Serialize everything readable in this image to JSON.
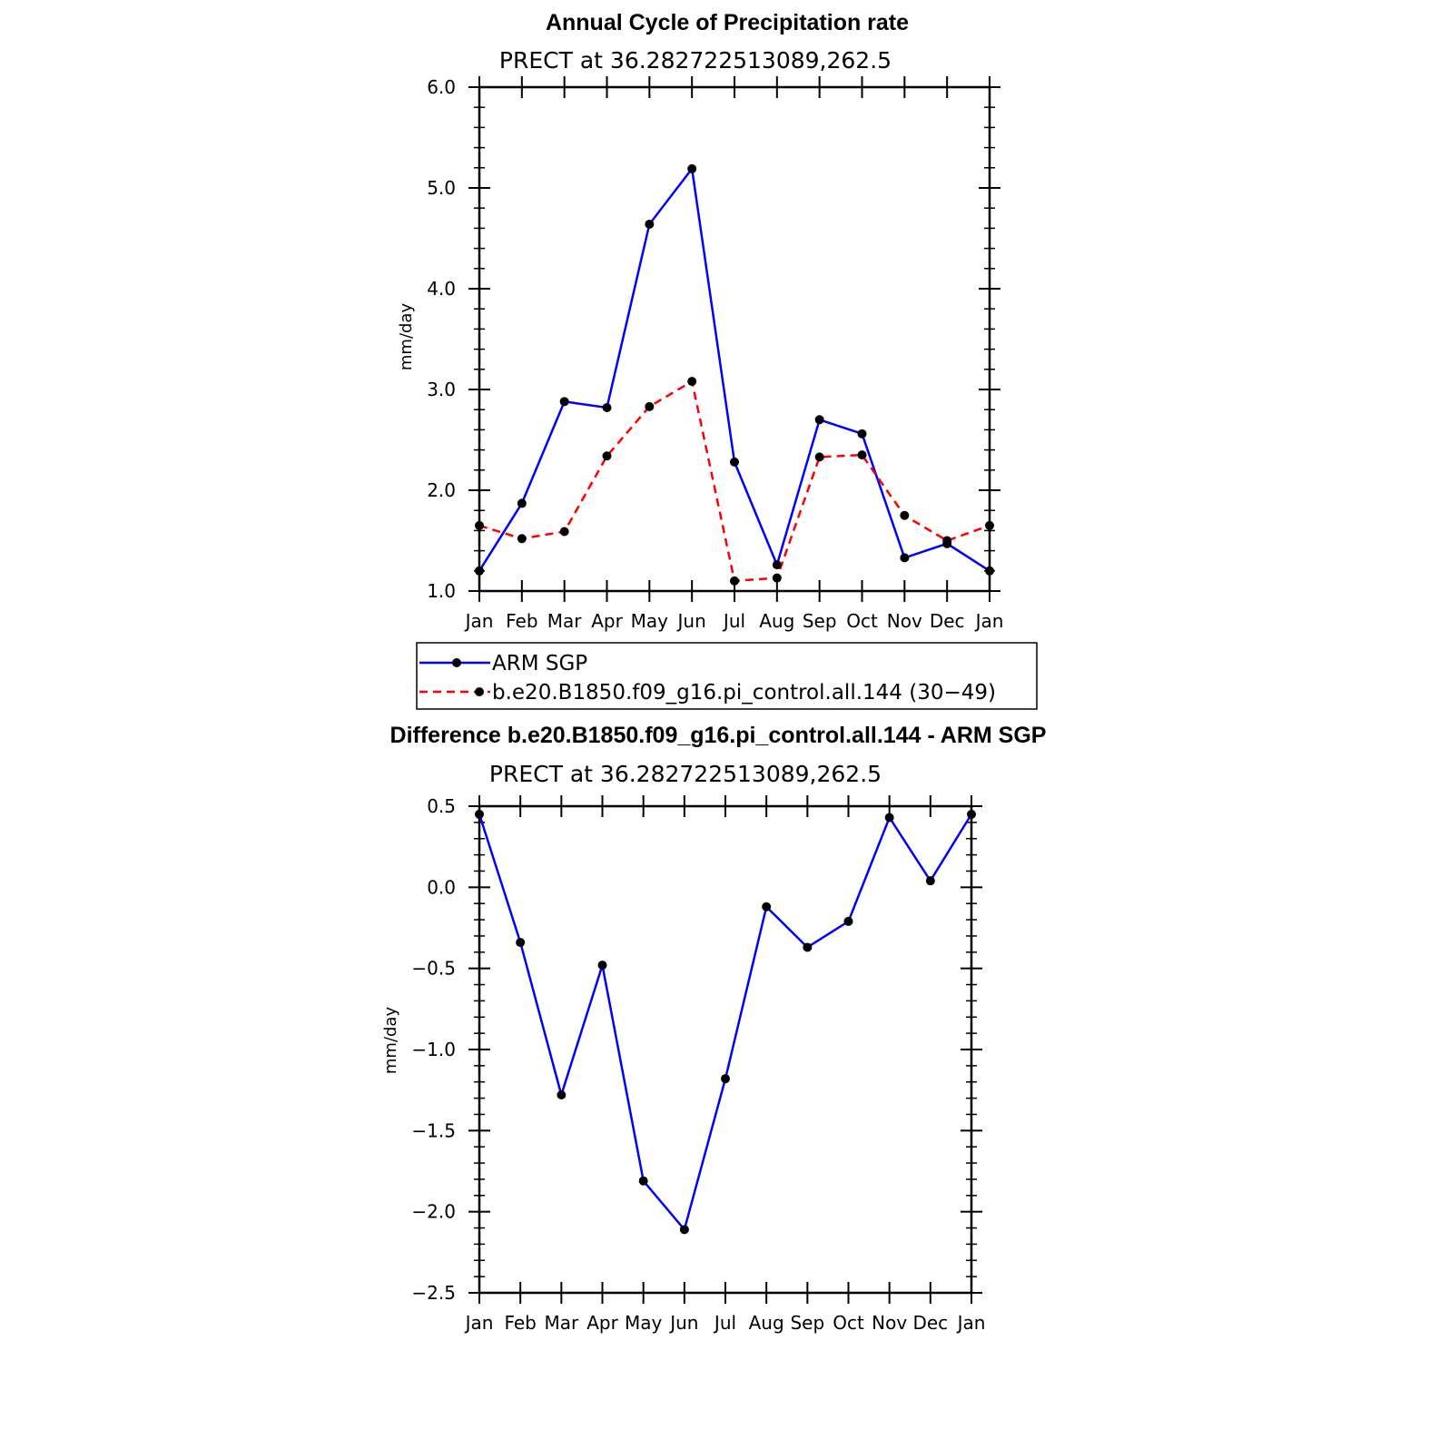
{
  "chart_data": [
    {
      "type": "line",
      "title": "Annual Cycle of Precipitation rate",
      "subtitle": "PRECT at 36.282722513089,262.5",
      "ylabel": "mm/day",
      "xlabel": "",
      "categories": [
        "Jan",
        "Feb",
        "Mar",
        "Apr",
        "May",
        "Jun",
        "Jul",
        "Aug",
        "Sep",
        "Oct",
        "Nov",
        "Dec",
        "Jan"
      ],
      "ylim": [
        1.0,
        6.0
      ],
      "yticks": [
        "1.0",
        "2.0",
        "3.0",
        "4.0",
        "5.0",
        "6.0"
      ],
      "ytick_values": [
        1.0,
        2.0,
        3.0,
        4.0,
        5.0,
        6.0
      ],
      "series": [
        {
          "name": "ARM SGP",
          "color": "#0000ff",
          "dash": "solid",
          "values": [
            1.2,
            1.87,
            2.88,
            2.82,
            4.64,
            5.19,
            2.28,
            1.26,
            2.7,
            2.56,
            1.33,
            1.47,
            1.2
          ]
        },
        {
          "name": "b.e20.B1850.f09_g16.pi_control.all.144 (30−49)",
          "color": "#ff0000",
          "dash": "dashed",
          "values": [
            1.65,
            1.52,
            1.59,
            2.34,
            2.83,
            3.08,
            1.1,
            1.13,
            2.33,
            2.35,
            1.75,
            1.5,
            1.65
          ]
        }
      ],
      "legend_position": "below"
    },
    {
      "type": "line",
      "title": "Difference b.e20.B1850.f09_g16.pi_control.all.144 - ARM SGP",
      "subtitle": "PRECT at 36.282722513089,262.5",
      "ylabel": "mm/day",
      "xlabel": "",
      "categories": [
        "Jan",
        "Feb",
        "Mar",
        "Apr",
        "May",
        "Jun",
        "Jul",
        "Aug",
        "Sep",
        "Oct",
        "Nov",
        "Dec",
        "Jan"
      ],
      "ylim": [
        -2.5,
        0.5
      ],
      "yticks": [
        "−2.5",
        "−2.0",
        "−1.5",
        "−1.0",
        "−0.5",
        "0.0",
        "0.5"
      ],
      "ytick_values": [
        -2.5,
        -2.0,
        -1.5,
        -1.0,
        -0.5,
        0.0,
        0.5
      ],
      "series": [
        {
          "color": "#0000ff",
          "dash": "solid",
          "values": [
            0.45,
            -0.34,
            -1.28,
            -0.48,
            -1.81,
            -2.11,
            -1.18,
            -0.12,
            -0.37,
            -0.21,
            0.43,
            0.04,
            0.45
          ]
        }
      ]
    }
  ]
}
